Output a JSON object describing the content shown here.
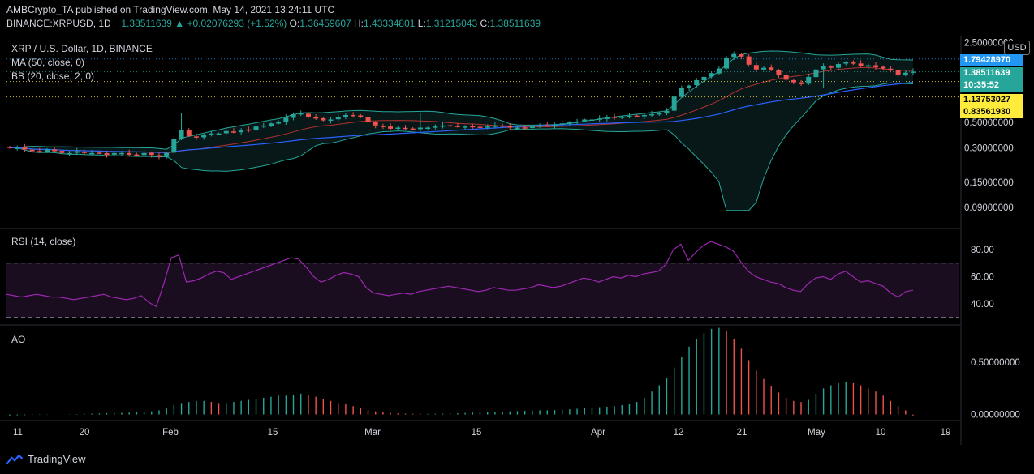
{
  "header": {
    "publisher_line": "AMBCrypto_TA published on TradingView.com, May 14, 2021 13:24:11 UTC",
    "symbol": "BINANCE:XRPUSD, 1D",
    "last": "1.38511639",
    "change_arrow": "▲",
    "change": "+0.02076293 (+1.52%)",
    "o_label": "O:",
    "o_value": "1.36459607",
    "h_label": "H:",
    "h_value": "1.43334801",
    "l_label": "L:",
    "l_value": "1.31215043",
    "c_label": "C:",
    "c_value": "1.38511639"
  },
  "legends": {
    "pair": "XRP / U.S. Dollar, 1D, BINANCE",
    "ma": "MA (50, close, 0)",
    "bb": "BB (20, close, 2, 0)",
    "rsi": "RSI (14, close)",
    "ao": "AO"
  },
  "price_axis": {
    "currency": "USD",
    "ticks": [
      "2.50000000",
      "0.50000000",
      "0.30000000",
      "0.15000000",
      "0.09000000"
    ],
    "tags": [
      {
        "value": "1.79428970",
        "bg": "#2196f3",
        "color": "#ffffff"
      },
      {
        "value": "1.38511639",
        "bg": "#26a69a",
        "color": "#ffffff"
      },
      {
        "value": "10:35:52",
        "bg": "#26a69a",
        "color": "#ffffff"
      },
      {
        "value": "1.13753027",
        "bg": "#ffeb3b",
        "color": "#000000"
      },
      {
        "value": "0.83561930",
        "bg": "#ffeb3b",
        "color": "#000000"
      }
    ]
  },
  "rsi_axis": {
    "ticks": [
      "80.00",
      "60.00",
      "40.00"
    ]
  },
  "ao_axis": {
    "ticks": [
      "0.50000000",
      "0.00000000"
    ]
  },
  "time_axis": {
    "labels": [
      "11",
      "20",
      "Feb",
      "15",
      "Mar",
      "15",
      "Apr",
      "12",
      "21",
      "May",
      "10",
      "19"
    ]
  },
  "footer": {
    "brand": "TradingView"
  },
  "colors": {
    "up": "#26a69a",
    "down": "#ef5350",
    "ma": "#2962ff",
    "bb_basis": "#b2322f",
    "bb_band": "#26a69a",
    "rsi": "#9c27b0",
    "grid": "#2a2e39"
  },
  "chart_data": [
    {
      "type": "candlestick",
      "title": "XRP / U.S. Dollar, 1D, BINANCE",
      "scale": "log",
      "ylim": [
        0.06,
        2.6
      ],
      "x_labels": [
        "11",
        "20",
        "Feb",
        "15",
        "Mar",
        "15",
        "Apr",
        "12",
        "21",
        "May",
        "10",
        "19"
      ],
      "close": [
        0.3,
        0.3,
        0.29,
        0.28,
        0.28,
        0.29,
        0.28,
        0.27,
        0.27,
        0.28,
        0.27,
        0.27,
        0.27,
        0.26,
        0.27,
        0.27,
        0.26,
        0.26,
        0.27,
        0.26,
        0.25,
        0.27,
        0.36,
        0.43,
        0.38,
        0.37,
        0.39,
        0.4,
        0.4,
        0.42,
        0.41,
        0.43,
        0.43,
        0.46,
        0.47,
        0.49,
        0.5,
        0.55,
        0.59,
        0.6,
        0.56,
        0.54,
        0.52,
        0.53,
        0.56,
        0.58,
        0.57,
        0.56,
        0.5,
        0.47,
        0.46,
        0.44,
        0.45,
        0.44,
        0.44,
        0.45,
        0.45,
        0.46,
        0.47,
        0.47,
        0.46,
        0.46,
        0.46,
        0.45,
        0.46,
        0.47,
        0.46,
        0.45,
        0.45,
        0.45,
        0.46,
        0.47,
        0.47,
        0.48,
        0.49,
        0.5,
        0.51,
        0.53,
        0.53,
        0.54,
        0.56,
        0.55,
        0.56,
        0.57,
        0.57,
        0.58,
        0.59,
        0.6,
        0.63,
        0.84,
        1.0,
        1.05,
        1.17,
        1.25,
        1.35,
        1.48,
        1.85,
        1.98,
        1.88,
        1.6,
        1.45,
        1.5,
        1.43,
        1.3,
        1.18,
        1.12,
        1.08,
        1.25,
        1.45,
        1.55,
        1.5,
        1.62,
        1.68,
        1.63,
        1.55,
        1.58,
        1.52,
        1.48,
        1.42,
        1.3,
        1.36,
        1.39
      ],
      "ma50": "rising from 0.38 to 1.15",
      "bollinger": {
        "basis": "20-period SMA",
        "upper_last": 1.7942897,
        "lower_min": 0.09
      }
    },
    {
      "type": "line",
      "title": "RSI (14, close)",
      "ylim": [
        25,
        95
      ],
      "bands": [
        70,
        30
      ],
      "values": [
        47,
        46,
        45,
        46,
        47,
        46,
        45,
        45,
        44,
        43,
        44,
        45,
        46,
        47,
        45,
        44,
        43,
        44,
        46,
        41,
        38,
        55,
        74,
        76,
        56,
        57,
        59,
        62,
        64,
        63,
        58,
        60,
        62,
        64,
        66,
        68,
        70,
        72,
        74,
        73,
        67,
        60,
        56,
        58,
        61,
        63,
        62,
        60,
        52,
        48,
        47,
        46,
        47,
        48,
        47,
        49,
        50,
        51,
        52,
        53,
        52,
        51,
        50,
        49,
        50,
        52,
        51,
        50,
        50,
        51,
        52,
        54,
        53,
        52,
        53,
        55,
        57,
        59,
        58,
        56,
        58,
        60,
        59,
        61,
        60,
        62,
        63,
        64,
        69,
        80,
        84,
        72,
        78,
        83,
        86,
        84,
        82,
        79,
        71,
        64,
        60,
        58,
        56,
        55,
        52,
        50,
        49,
        55,
        59,
        60,
        58,
        62,
        64,
        60,
        56,
        57,
        55,
        53,
        48,
        45,
        49,
        50
      ]
    },
    {
      "type": "bar",
      "title": "AO",
      "ylim": [
        -0.05,
        0.85
      ],
      "values": [
        -0.01,
        -0.008,
        -0.006,
        -0.004,
        -0.003,
        -0.002,
        -0.001,
        0.0,
        0.002,
        0.004,
        0.006,
        0.008,
        0.01,
        0.012,
        0.014,
        0.016,
        0.018,
        0.02,
        0.025,
        0.03,
        0.04,
        0.06,
        0.09,
        0.11,
        0.12,
        0.13,
        0.13,
        0.12,
        0.11,
        0.11,
        0.12,
        0.13,
        0.14,
        0.15,
        0.16,
        0.17,
        0.18,
        0.18,
        0.19,
        0.2,
        0.19,
        0.17,
        0.15,
        0.13,
        0.11,
        0.1,
        0.08,
        0.06,
        0.04,
        0.03,
        0.02,
        0.015,
        0.01,
        0.008,
        0.007,
        0.006,
        0.006,
        0.007,
        0.008,
        0.01,
        0.012,
        0.015,
        0.018,
        0.02,
        0.022,
        0.025,
        0.028,
        0.03,
        0.032,
        0.035,
        0.037,
        0.04,
        0.04,
        0.042,
        0.045,
        0.05,
        0.055,
        0.06,
        0.065,
        0.07,
        0.075,
        0.08,
        0.09,
        0.1,
        0.12,
        0.16,
        0.22,
        0.28,
        0.35,
        0.45,
        0.55,
        0.65,
        0.72,
        0.78,
        0.82,
        0.83,
        0.8,
        0.72,
        0.63,
        0.52,
        0.42,
        0.34,
        0.27,
        0.21,
        0.16,
        0.13,
        0.12,
        0.14,
        0.2,
        0.25,
        0.28,
        0.3,
        0.31,
        0.3,
        0.28,
        0.25,
        0.22,
        0.18,
        0.13,
        0.08,
        0.04,
        -0.01
      ]
    }
  ]
}
